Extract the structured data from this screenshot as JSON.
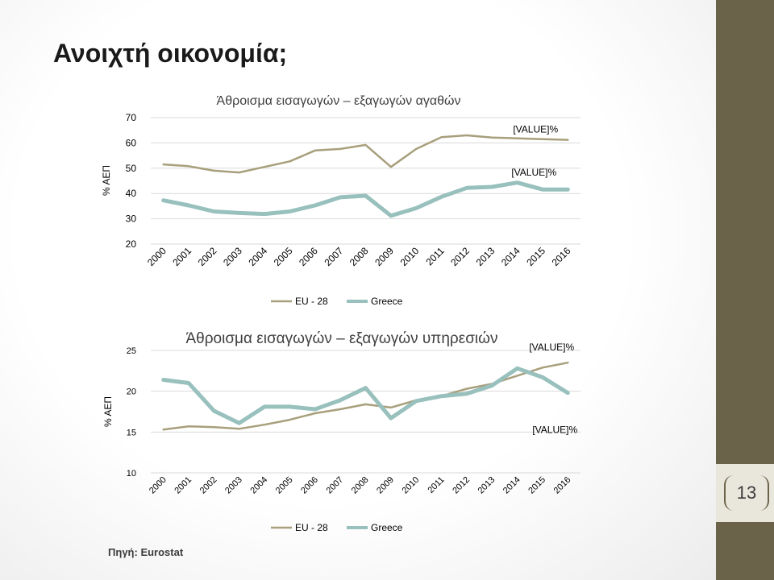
{
  "slide": {
    "title": "Ανοιχτή οικονομία;",
    "source": "Πηγή: Eurostat",
    "page_number": "13",
    "colors": {
      "sidebar": "#6b624a",
      "page_box": "#e9e6dc"
    }
  },
  "chart_data": [
    {
      "type": "line",
      "title": "Άθροισμα εισαγωγών – εξαγωγών αγαθών",
      "ylabel": "% ΑΕΠ",
      "ylim": [
        20,
        70
      ],
      "yticks": [
        "20",
        "30",
        "40",
        "50",
        "60",
        "70"
      ],
      "grid": true,
      "legend": "bottom",
      "categories": [
        "2000",
        "2001",
        "2002",
        "2003",
        "2004",
        "2005",
        "2006",
        "2007",
        "2008",
        "2009",
        "2010",
        "2011",
        "2012",
        "2013",
        "2014",
        "2015",
        "2016"
      ],
      "series": [
        {
          "name": "EU - 28",
          "color": "#a89f7c",
          "values": [
            51.5,
            50.8,
            49,
            48.3,
            50.5,
            52.7,
            57,
            57.6,
            59.2,
            50.5,
            57.6,
            62.3,
            63,
            62.1,
            61.8,
            61.5,
            61.2
          ],
          "end_label": "[VALUE]%"
        },
        {
          "name": "Greece",
          "color": "#98c0bd",
          "values": [
            37.3,
            35.3,
            32.9,
            32.3,
            31.9,
            32.9,
            35.3,
            38.5,
            39.1,
            31.2,
            34.2,
            38.7,
            42.2,
            42.6,
            44.3,
            41.6,
            41.6
          ],
          "end_label": "[VALUE]%"
        }
      ]
    },
    {
      "type": "line",
      "title": "Άθροισμα εισαγωγών – εξαγωγών υπηρεσιών",
      "ylabel": "% ΑΕΠ",
      "ylim": [
        10,
        25
      ],
      "yticks": [
        "10",
        "15",
        "20",
        "25"
      ],
      "grid": true,
      "legend": "bottom",
      "categories": [
        "2000",
        "2001",
        "2002",
        "2003",
        "2004",
        "2005",
        "2006",
        "2007",
        "2008",
        "2009",
        "2010",
        "2011",
        "2012",
        "2013",
        "2014",
        "2015",
        "2016"
      ],
      "series": [
        {
          "name": "EU - 28",
          "color": "#a89f7c",
          "values": [
            15.3,
            15.7,
            15.6,
            15.4,
            15.9,
            16.5,
            17.3,
            17.8,
            18.4,
            18,
            18.9,
            19.4,
            20.3,
            20.9,
            21.9,
            22.9,
            23.5
          ],
          "end_label": "[VALUE]%"
        },
        {
          "name": "Greece",
          "color": "#98c0bd",
          "values": [
            21.4,
            21,
            17.6,
            16.1,
            18.1,
            18.1,
            17.8,
            18.9,
            20.4,
            16.7,
            18.8,
            19.4,
            19.7,
            20.7,
            22.8,
            21.7,
            19.8
          ],
          "end_label": "[VALUE]%"
        }
      ]
    }
  ]
}
